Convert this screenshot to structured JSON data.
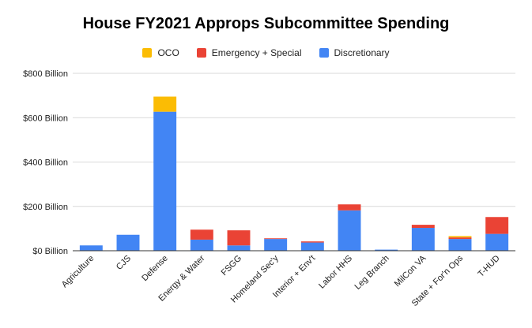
{
  "chart_data": {
    "type": "bar",
    "stacked": true,
    "title": "House FY2021 Approps Subcommittee Spending",
    "xlabel": "",
    "ylabel": "",
    "ylim": [
      0,
      800
    ],
    "y_ticks": [
      "$0 Billion",
      "$200 Billion",
      "$400 Billion",
      "$600 Billion",
      "$800 Billion"
    ],
    "y_tick_values": [
      0,
      200,
      400,
      600,
      800
    ],
    "grid": true,
    "legend_position": "top-center",
    "categories": [
      "Agriculture",
      "CJS",
      "Defense",
      "Energy & Water",
      "FSGG",
      "Homeland Sec'y",
      "Interior + Env't",
      "Labor HHS",
      "Leg Branch",
      "MilCon VA",
      "State + For'n Ops",
      "T-HUD"
    ],
    "series": [
      {
        "name": "Discretionary",
        "color": "#4285f4",
        "values": [
          24,
          72,
          627,
          50,
          24,
          53,
          37,
          182,
          5,
          103,
          53,
          76
        ]
      },
      {
        "name": "Emergency + Special",
        "color": "#ea4335",
        "values": [
          0,
          0,
          0,
          45,
          68,
          3,
          5,
          27,
          0,
          14,
          7,
          76
        ]
      },
      {
        "name": "OCO",
        "color": "#fbbc04",
        "values": [
          0,
          0,
          68,
          0,
          0,
          0,
          0,
          0,
          0,
          0,
          6,
          0
        ]
      }
    ],
    "legend_order": [
      "OCO",
      "Emergency + Special",
      "Discretionary"
    ]
  }
}
